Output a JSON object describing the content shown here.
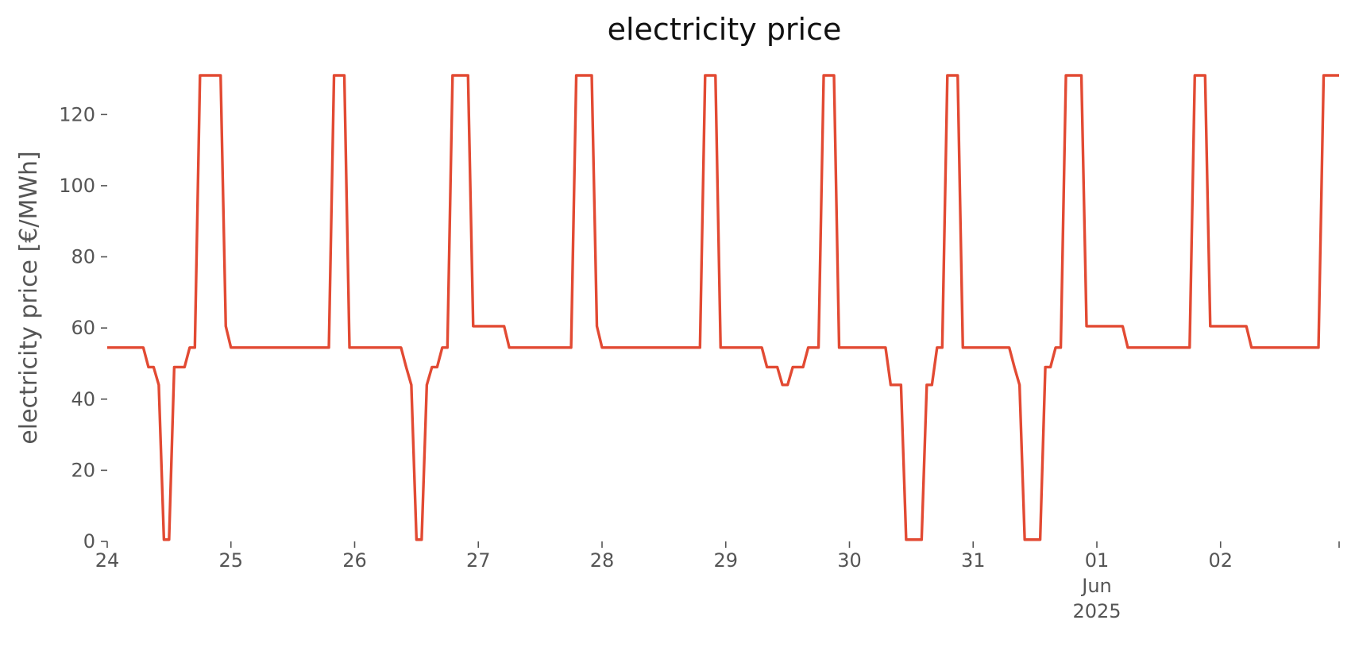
{
  "chart_data": {
    "type": "line",
    "title": "electricity price",
    "xlabel": "",
    "ylabel": "electricity price [€/MWh]",
    "ylim": [
      0,
      131
    ],
    "yticks": [
      "0",
      "20",
      "40",
      "60",
      "80",
      "100",
      "120"
    ],
    "xlim": [
      "2025-05-24T00:00",
      "2025-06-02T23:00"
    ],
    "xtick_labels": [
      {
        "date": "2025-05-24",
        "label": "24"
      },
      {
        "date": "2025-05-25",
        "label": "25"
      },
      {
        "date": "2025-05-26",
        "label": "26"
      },
      {
        "date": "2025-05-27",
        "label": "27"
      },
      {
        "date": "2025-05-28",
        "label": "28"
      },
      {
        "date": "2025-05-29",
        "label": "29"
      },
      {
        "date": "2025-05-30",
        "label": "30"
      },
      {
        "date": "2025-05-31",
        "label": "31"
      },
      {
        "date": "2025-06-01",
        "label": "01",
        "sub": [
          "Jun",
          "2025"
        ]
      },
      {
        "date": "2025-06-02",
        "label": "02"
      }
    ],
    "grid": false,
    "color": "#E24A33",
    "series": [
      {
        "interval_hours": 1,
        "start": "2025-05-24T00:00",
        "values": [
          54.5,
          54.5,
          54.5,
          54.5,
          54.5,
          54.5,
          54.5,
          54.5,
          49.0,
          49.0,
          44.0,
          0.5,
          0.5,
          49.0,
          49.0,
          49.0,
          54.5,
          54.5,
          131,
          131,
          131,
          131,
          131,
          60.5,
          54.5,
          54.5,
          54.5,
          54.5,
          54.5,
          54.5,
          54.5,
          54.5,
          54.5,
          54.5,
          54.5,
          54.5,
          54.5,
          54.5,
          54.5,
          54.5,
          54.5,
          54.5,
          54.5,
          54.5,
          131,
          131,
          131,
          54.5,
          54.5,
          54.5,
          54.5,
          54.5,
          54.5,
          54.5,
          54.5,
          54.5,
          54.5,
          54.5,
          49.0,
          44.0,
          0.5,
          0.5,
          44.0,
          49.0,
          49.0,
          54.5,
          54.5,
          131,
          131,
          131,
          131,
          60.5,
          60.5,
          60.5,
          60.5,
          60.5,
          60.5,
          60.5,
          54.5,
          54.5,
          54.5,
          54.5,
          54.5,
          54.5,
          54.5,
          54.5,
          54.5,
          54.5,
          54.5,
          54.5,
          54.5,
          131,
          131,
          131,
          131,
          60.5,
          54.5,
          54.5,
          54.5,
          54.5,
          54.5,
          54.5,
          54.5,
          54.5,
          54.5,
          54.5,
          54.5,
          54.5,
          54.5,
          54.5,
          54.5,
          54.5,
          54.5,
          54.5,
          54.5,
          54.5,
          131,
          131,
          131,
          54.5,
          54.5,
          54.5,
          54.5,
          54.5,
          54.5,
          54.5,
          54.5,
          54.5,
          49.0,
          49.0,
          49.0,
          44.0,
          44.0,
          49.0,
          49.0,
          49.0,
          54.5,
          54.5,
          54.5,
          131,
          131,
          131,
          54.5,
          54.5,
          54.5,
          54.5,
          54.5,
          54.5,
          54.5,
          54.5,
          54.5,
          54.5,
          44.0,
          44.0,
          44.0,
          0.5,
          0.5,
          0.5,
          0.5,
          44.0,
          44.0,
          54.5,
          54.5,
          131,
          131,
          131,
          54.5,
          54.5,
          54.5,
          54.5,
          54.5,
          54.5,
          54.5,
          54.5,
          54.5,
          54.5,
          49.0,
          44.0,
          0.5,
          0.5,
          0.5,
          0.5,
          49.0,
          49.0,
          54.5,
          54.5,
          131,
          131,
          131,
          131,
          60.5,
          60.5,
          60.5,
          60.5,
          60.5,
          60.5,
          60.5,
          60.5,
          54.5,
          54.5,
          54.5,
          54.5,
          54.5,
          54.5,
          54.5,
          54.5,
          54.5,
          54.5,
          54.5,
          54.5,
          54.5,
          131,
          131,
          131,
          60.5,
          60.5,
          60.5,
          60.5,
          60.5,
          60.5,
          60.5,
          60.5,
          54.5,
          54.5,
          54.5,
          54.5,
          54.5,
          54.5,
          54.5,
          54.5,
          54.5,
          54.5,
          54.5,
          54.5,
          54.5,
          54.5,
          131,
          131,
          131,
          131
        ]
      }
    ]
  }
}
